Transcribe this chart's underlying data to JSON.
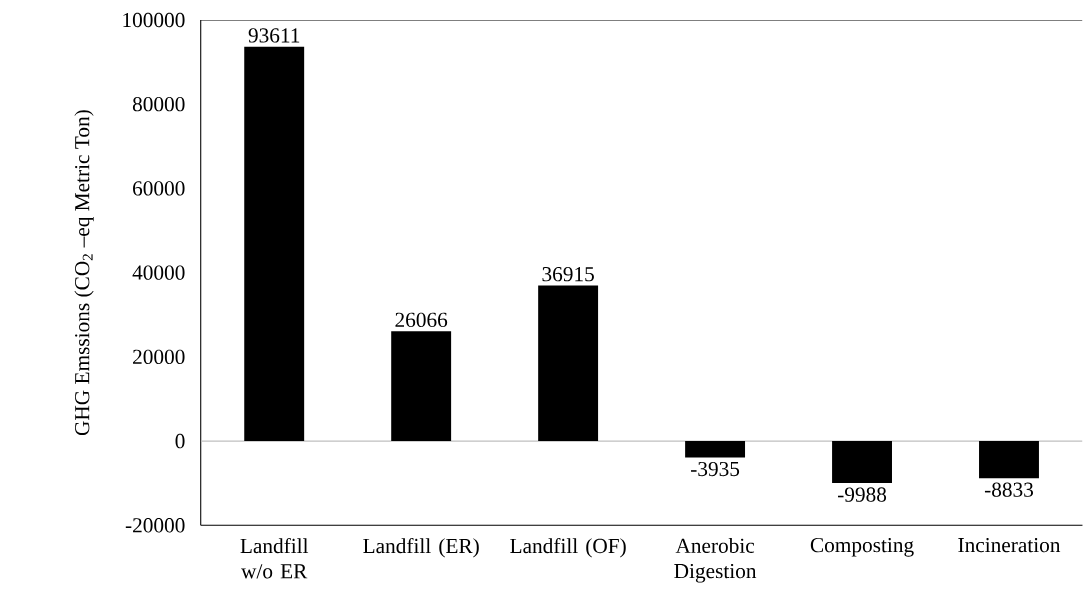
{
  "chart_data": {
    "type": "bar",
    "ylabel": "GHG Emssions (CO$_{2}$ –eq Metric Ton)",
    "categories": [
      "Landfill w/o ER",
      "Landfill (ER)",
      "Landfill (OF)",
      "Anerobic Digestion",
      "Composting",
      "Incineration"
    ],
    "values": [
      93611,
      26066,
      36915,
      -3935,
      -9988,
      -8833
    ],
    "color": "#000000",
    "ylim": [
      -20000,
      100000
    ],
    "yticks": [
      -20000,
      0,
      20000,
      40000,
      60000,
      80000,
      100000
    ],
    "data_labels": true
  }
}
